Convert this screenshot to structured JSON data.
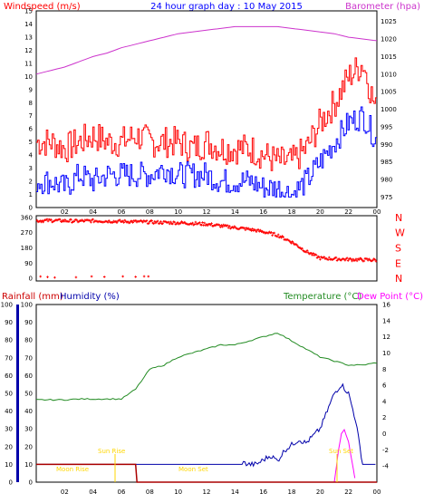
{
  "header": {
    "left": "Windspeed (m/s)",
    "center": "24 hour graph day : 10 May 2015",
    "right": "Barometer (hpa)"
  },
  "colors": {
    "wind_gust": "#ff0000",
    "wind_avg": "#0000ff",
    "barometer": "#cc33cc",
    "direction": "#ff0000",
    "temperature": "#228b22",
    "humidity": "#0000aa",
    "dewpoint": "#ff00ff",
    "rain": "#aa0000",
    "sun": "#ffd700",
    "moon": "#ffd700",
    "header_red": "#ff0000",
    "header_blue": "#0000ff",
    "header_purple": "#cc33cc",
    "rain_label": "#cc0000",
    "humidity_label": "#0000aa",
    "temp_label": "#228b22",
    "dew_label": "#ff00ff"
  },
  "x_ticks": [
    "02",
    "04",
    "06",
    "08",
    "10",
    "12",
    "14",
    "16",
    "18",
    "20",
    "22",
    "00"
  ],
  "panel1": {
    "left_ticks": [
      "0",
      "1",
      "2",
      "3",
      "4",
      "5",
      "6",
      "7",
      "8",
      "9",
      "10",
      "11",
      "12",
      "13",
      "14",
      "15"
    ],
    "right_ticks": [
      "975",
      "980",
      "985",
      "990",
      "995",
      "1000",
      "1005",
      "1010",
      "1015",
      "1020",
      "1025"
    ]
  },
  "panel2": {
    "left_ticks": [
      "360",
      "270",
      "180",
      "90",
      "0"
    ],
    "compass": [
      "N",
      "W",
      "S",
      "E",
      "N"
    ]
  },
  "panel3": {
    "labels": {
      "rain": "Rainfall (mm)",
      "humidity": "Humidity (%)",
      "temperature": "Temperature (°C)",
      "dewpoint": "Dew Point (°C)"
    },
    "left_ticks": [
      "0",
      "10",
      "20",
      "30",
      "40",
      "50",
      "60",
      "70",
      "80",
      "90",
      "100"
    ],
    "right_ticks": [
      "-4",
      "-2",
      "0",
      "2",
      "4",
      "6",
      "8",
      "10",
      "12",
      "14",
      "16"
    ],
    "annotations": {
      "moon_rise": "Moon Rise",
      "sun_rise": "Sun Rise",
      "moon_set": "Moon Set",
      "sun_set": "Sun Set"
    }
  },
  "chart_data": [
    {
      "type": "line",
      "title": "24 hour graph day : 10 May 2015",
      "ylabel": "Windspeed (m/s)",
      "y2label": "Barometer (hpa)",
      "x": [
        0,
        1,
        2,
        3,
        4,
        5,
        6,
        7,
        8,
        9,
        10,
        11,
        12,
        13,
        14,
        15,
        16,
        17,
        18,
        19,
        20,
        21,
        22,
        23,
        24
      ],
      "ylim": [
        0,
        15
      ],
      "y2lim": [
        972,
        1028
      ],
      "series": [
        {
          "name": "Windspeed (m/s)",
          "axis": "left",
          "role": "gust",
          "values": [
            5,
            5,
            4.5,
            5,
            5.5,
            5,
            5,
            5.5,
            5,
            5,
            5,
            4.5,
            5,
            4.5,
            4.5,
            4.5,
            4,
            3.5,
            3.5,
            4.5,
            6.5,
            8,
            10,
            11,
            7
          ]
        },
        {
          "name": "Windspeed (m/s)",
          "axis": "left",
          "role": "average",
          "values": [
            2,
            2,
            1.5,
            2.5,
            2,
            2.5,
            2.5,
            2.5,
            2.5,
            3,
            2.5,
            2.5,
            2.5,
            2,
            2,
            2,
            1.5,
            1.5,
            1,
            2,
            3.5,
            5,
            6.5,
            7,
            5
          ]
        },
        {
          "name": "Barometer (hpa)",
          "axis": "right",
          "values": [
            1010,
            1011,
            1012,
            1013.5,
            1015,
            1016,
            1017.5,
            1018.5,
            1019.5,
            1020.5,
            1021.5,
            1022,
            1022.5,
            1023,
            1023.5,
            1023.5,
            1023.5,
            1023.5,
            1023,
            1022.5,
            1022,
            1021.5,
            1020.5,
            1020,
            1019.5
          ]
        }
      ]
    },
    {
      "type": "scatter",
      "ylabel": "Wind direction",
      "ylim": [
        -15,
        370
      ],
      "x": [
        0,
        1,
        2,
        3,
        4,
        5,
        6,
        7,
        8,
        9,
        10,
        11,
        12,
        13,
        14,
        15,
        16,
        17,
        18,
        19,
        20,
        21,
        22,
        23,
        24
      ],
      "series": [
        {
          "name": "Wind direction",
          "values": [
            340,
            342,
            340,
            338,
            340,
            338,
            336,
            335,
            332,
            330,
            328,
            325,
            320,
            310,
            300,
            290,
            275,
            255,
            215,
            160,
            120,
            115,
            112,
            110,
            108
          ]
        }
      ]
    },
    {
      "type": "line",
      "ylabel": "Rainfall (mm)  Humidity (%)",
      "y2label": "Temperature (°C)  Dew Point (°C)",
      "ylim": [
        0,
        100
      ],
      "y2lim": [
        -6,
        16
      ],
      "series": [
        {
          "name": "Temperature (°C)",
          "axis": "right",
          "x": [
            0,
            1,
            2,
            3,
            4,
            5,
            6,
            7,
            8,
            9,
            10,
            11,
            12,
            13,
            14,
            15,
            16,
            17,
            18,
            19,
            20,
            21,
            22,
            23,
            24
          ],
          "values": [
            4.2,
            4.2,
            4.2,
            4.3,
            4.3,
            4.3,
            4.3,
            5.5,
            8,
            8.5,
            9.5,
            10,
            10.5,
            11,
            11,
            11.5,
            12,
            12.5,
            11.5,
            10.5,
            9.5,
            9,
            8.5,
            8.5,
            8.8
          ]
        },
        {
          "name": "Humidity (%)",
          "axis": "left",
          "x": [
            14.5,
            15,
            15.5,
            16.5,
            17,
            17.5,
            18.5,
            19,
            20,
            21,
            21.5,
            22,
            22.5,
            23,
            23.5,
            24
          ],
          "values": [
            11,
            10,
            10,
            15,
            12,
            18,
            24,
            22,
            30,
            50,
            55,
            50,
            35,
            10,
            10,
            10
          ]
        },
        {
          "name": "Dew Point (°C)",
          "axis": "right",
          "x": [
            21,
            21.3,
            21.5,
            21.7,
            22,
            22.3,
            22.5
          ],
          "values": [
            -6,
            -2,
            0,
            0.5,
            -1,
            -4,
            -6
          ]
        },
        {
          "name": "Rainfall (mm)",
          "axis": "left",
          "x": [
            0,
            7,
            7.1,
            24
          ],
          "values": [
            10,
            10,
            0,
            0
          ]
        }
      ]
    }
  ]
}
